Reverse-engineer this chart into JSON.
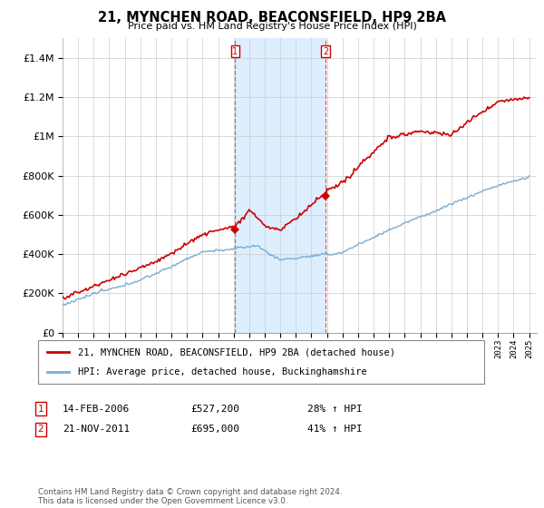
{
  "title": "21, MYNCHEN ROAD, BEACONSFIELD, HP9 2BA",
  "subtitle": "Price paid vs. HM Land Registry's House Price Index (HPI)",
  "legend_label_red": "21, MYNCHEN ROAD, BEACONSFIELD, HP9 2BA (detached house)",
  "legend_label_blue": "HPI: Average price, detached house, Buckinghamshire",
  "transaction1_date": "14-FEB-2006",
  "transaction1_price": "£527,200",
  "transaction1_hpi": "28% ↑ HPI",
  "transaction2_date": "21-NOV-2011",
  "transaction2_price": "£695,000",
  "transaction2_hpi": "41% ↑ HPI",
  "footer": "Contains HM Land Registry data © Crown copyright and database right 2024.\nThis data is licensed under the Open Government Licence v3.0.",
  "red_color": "#cc0000",
  "blue_color": "#7aadd4",
  "highlight_color": "#ddeeff",
  "transaction1_x": 2006.1,
  "transaction2_x": 2011.9,
  "transaction1_y": 527200,
  "transaction2_y": 695000,
  "ylim": [
    0,
    1500000
  ],
  "xlim_start": 1995,
  "xlim_end": 2025.5
}
